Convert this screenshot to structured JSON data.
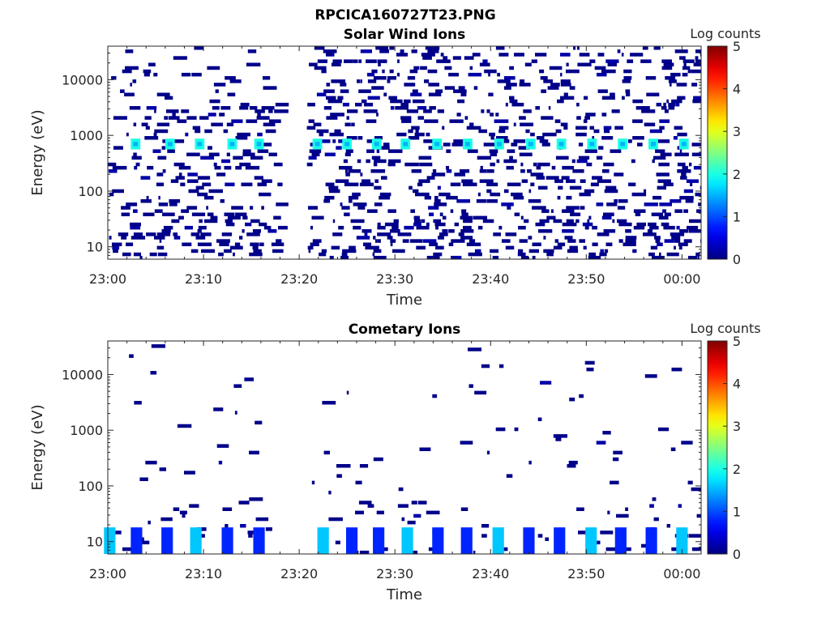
{
  "figure_title": "RPCICA160727T23.PNG",
  "chart_data": [
    {
      "type": "heatmap",
      "title": "Solar Wind Ions",
      "xlabel": "Time",
      "ylabel": "Energy (eV)",
      "x_ticks": [
        "23:00",
        "23:10",
        "23:20",
        "23:30",
        "23:40",
        "23:50",
        "00:00"
      ],
      "x_range_minutes": [
        0,
        62
      ],
      "y_scale": "log",
      "y_ticks": [
        {
          "value": 10,
          "label": "10"
        },
        {
          "value": 100,
          "label": "100"
        },
        {
          "value": 1000,
          "label": "1000"
        },
        {
          "value": 10000,
          "label": "10000"
        }
      ],
      "y_range_eV": [
        6,
        40000
      ],
      "colorbar": {
        "label": "Log counts",
        "range": [
          0,
          5
        ],
        "ticks": [
          "0",
          "1",
          "2",
          "3",
          "4",
          "5"
        ],
        "colormap": "jet"
      },
      "data_gap_minutes": [
        17.8,
        20.8
      ],
      "solar_wind_peak": {
        "energy_eV": 700,
        "peak_log_counts": 2.0,
        "times_minutes": [
          2.9,
          6.5,
          9.6,
          13.0,
          15.8,
          21.9,
          25.0,
          28.1,
          31.1,
          34.4,
          37.6,
          40.9,
          44.2,
          47.4,
          50.6,
          53.8,
          57.0,
          60.2
        ]
      },
      "background": {
        "density_low_energy": 0.45,
        "density_high_energy": 0.32,
        "dominant_log_counts": 0.05
      }
    },
    {
      "type": "heatmap",
      "title": "Cometary Ions",
      "xlabel": "Time",
      "ylabel": "Energy (eV)",
      "x_ticks": [
        "23:00",
        "23:10",
        "23:20",
        "23:30",
        "23:40",
        "23:50",
        "00:00"
      ],
      "x_range_minutes": [
        0,
        62
      ],
      "y_scale": "log",
      "y_ticks": [
        {
          "value": 10,
          "label": "10"
        },
        {
          "value": 100,
          "label": "100"
        },
        {
          "value": 1000,
          "label": "1000"
        },
        {
          "value": 10000,
          "label": "10000"
        }
      ],
      "y_range_eV": [
        6,
        40000
      ],
      "colorbar": {
        "label": "Log counts",
        "range": [
          0,
          5
        ],
        "ticks": [
          "0",
          "1",
          "2",
          "3",
          "4",
          "5"
        ],
        "colormap": "jet"
      },
      "data_gap_minutes": [
        17.8,
        20.8
      ],
      "low_energy_bursts": {
        "energy_eV_range": [
          6,
          18
        ],
        "peak_log_counts": 1.6,
        "times_minutes": [
          0.2,
          3.0,
          6.2,
          9.2,
          12.5,
          15.8,
          22.5,
          25.5,
          28.3,
          31.3,
          34.5,
          37.5,
          40.8,
          44.0,
          47.2,
          50.5,
          53.6,
          56.8,
          60.0
        ]
      },
      "background": {
        "density_low_energy": 0.12,
        "density_high_energy": 0.04,
        "dominant_log_counts": 0.05
      }
    }
  ]
}
